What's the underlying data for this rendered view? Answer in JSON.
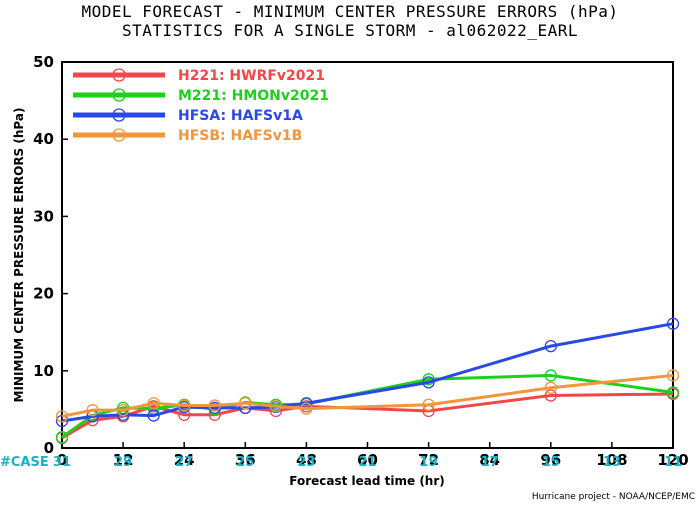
{
  "chart_data": {
    "type": "line",
    "title": "MODEL FORECAST - MINIMUM CENTER PRESSURE ERRORS (hPa)",
    "subtitle": "STATISTICS FOR A SINGLE STORM - al062022_EARL",
    "xlabel": "Forecast lead time (hr)",
    "ylabel": "MINIMUM CENTER PRESSURE ERRORS (hPa)",
    "xlim": [
      0,
      120
    ],
    "ylim": [
      0,
      50
    ],
    "xticks": [
      "0",
      "12",
      "24",
      "36",
      "48",
      "60",
      "72",
      "84",
      "96",
      "108",
      "120"
    ],
    "yticks": [
      "0",
      "10",
      "20",
      "30",
      "40",
      "50"
    ],
    "case_label": "#CASE",
    "case_counts": [
      "31",
      "29",
      "27",
      "25",
      "23",
      "21",
      "19",
      "17",
      "15",
      "13",
      "11"
    ],
    "credit": "Hurricane project - NOAA/NCEP/EMC",
    "legend_position": "top-left",
    "series": [
      {
        "name": "H221: HWRFv2021",
        "color": "#f04848",
        "points": [
          [
            0,
            1.3
          ],
          [
            6,
            3.6
          ],
          [
            12,
            4.1
          ],
          [
            18,
            5.4
          ],
          [
            24,
            4.3
          ],
          [
            30,
            4.3
          ],
          [
            36,
            5.2
          ],
          [
            42,
            4.8
          ],
          [
            48,
            5.4
          ],
          [
            72,
            4.8
          ],
          [
            96,
            6.8
          ],
          [
            120,
            7.0
          ]
        ]
      },
      {
        "name": "M221: HMONv2021",
        "color": "#1ed01e",
        "points": [
          [
            0,
            1.4
          ],
          [
            6,
            4.2
          ],
          [
            12,
            5.2
          ],
          [
            18,
            5.1
          ],
          [
            24,
            5.6
          ],
          [
            30,
            5.0
          ],
          [
            36,
            5.9
          ],
          [
            42,
            5.6
          ],
          [
            48,
            5.7
          ],
          [
            72,
            8.9
          ],
          [
            96,
            9.4
          ],
          [
            120,
            7.2
          ]
        ]
      },
      {
        "name": "HFSA: HAFSv1A",
        "color": "#2a48e8",
        "points": [
          [
            0,
            3.5
          ],
          [
            6,
            4.1
          ],
          [
            12,
            4.3
          ],
          [
            18,
            4.2
          ],
          [
            24,
            5.3
          ],
          [
            30,
            5.2
          ],
          [
            36,
            5.2
          ],
          [
            42,
            5.3
          ],
          [
            48,
            5.8
          ],
          [
            72,
            8.5
          ],
          [
            96,
            13.2
          ],
          [
            120,
            16.1
          ]
        ]
      },
      {
        "name": "HFSB: HAFSv1B",
        "color": "#f0963c",
        "points": [
          [
            0,
            4.1
          ],
          [
            6,
            4.9
          ],
          [
            12,
            4.9
          ],
          [
            18,
            5.8
          ],
          [
            24,
            5.5
          ],
          [
            30,
            5.5
          ],
          [
            36,
            5.8
          ],
          [
            42,
            5.4
          ],
          [
            48,
            5.1
          ],
          [
            72,
            5.6
          ],
          [
            96,
            7.8
          ],
          [
            120,
            9.4
          ]
        ]
      }
    ]
  }
}
